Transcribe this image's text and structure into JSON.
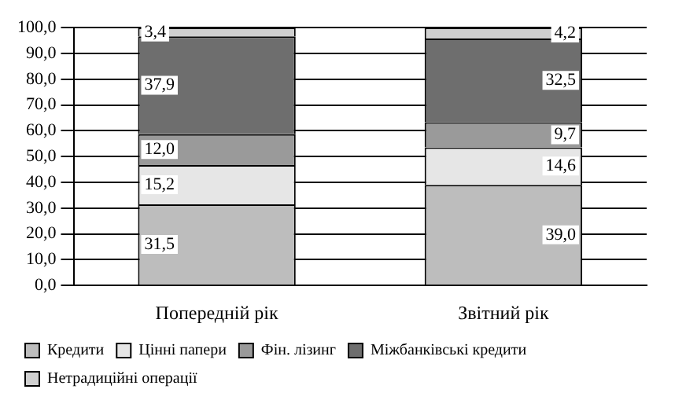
{
  "chart_data": {
    "type": "bar",
    "stacked": true,
    "categories": [
      "Попередній рік",
      "Звітний рік"
    ],
    "series": [
      {
        "name": "Кредити",
        "color": "#bdbdbd",
        "values": [
          31.5,
          39.0
        ],
        "value_labels": [
          "31,5",
          "39,0"
        ]
      },
      {
        "name": "Цінні папери",
        "color": "#e6e6e6",
        "values": [
          15.2,
          14.6
        ],
        "value_labels": [
          "15,2",
          "14,6"
        ]
      },
      {
        "name": "Фін. лізинг",
        "color": "#9a9a9a",
        "values": [
          12.0,
          9.7
        ],
        "value_labels": [
          "12,0",
          "9,7"
        ]
      },
      {
        "name": "Міжбанківські кредити",
        "color": "#6e6e6e",
        "values": [
          37.9,
          32.5
        ],
        "value_labels": [
          "37,9",
          "32,5"
        ]
      },
      {
        "name": "Нетрадиційні операції",
        "color": "#d0d0d0",
        "values": [
          3.4,
          4.2
        ],
        "value_labels": [
          "3,4",
          "4,2"
        ]
      }
    ],
    "ylim": [
      0,
      100
    ],
    "yticks": [
      {
        "value": 0,
        "label": "0,0"
      },
      {
        "value": 10,
        "label": "10,0"
      },
      {
        "value": 20,
        "label": "20,0"
      },
      {
        "value": 30,
        "label": "30,0"
      },
      {
        "value": 40,
        "label": "40,0"
      },
      {
        "value": 50,
        "label": "50,0"
      },
      {
        "value": 60,
        "label": "60,0"
      },
      {
        "value": 70,
        "label": "70,0"
      },
      {
        "value": 80,
        "label": "80,0"
      },
      {
        "value": 90,
        "label": "90,0"
      },
      {
        "value": 100,
        "label": "100,0"
      }
    ],
    "grid": "y",
    "legend": "bottom"
  }
}
